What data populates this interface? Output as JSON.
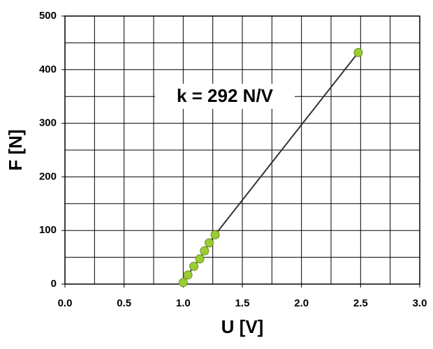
{
  "chart_data": {
    "type": "scatter",
    "x_label": "U [V]",
    "y_label": "F [N]",
    "annotation": "k = 292 N/V",
    "series": [
      {
        "color": "#9acd32",
        "line_color": "#333333",
        "x": [
          1.0,
          1.04,
          1.09,
          1.14,
          1.18,
          1.22,
          1.27,
          2.48
        ],
        "values": [
          3,
          17,
          33,
          47,
          62,
          77,
          92,
          432
        ]
      }
    ],
    "xlim": [
      0,
      3
    ],
    "ylim": [
      0,
      500
    ],
    "xticks": [
      {
        "value": 0,
        "label": "0.0"
      },
      0.5,
      {
        "value": 1,
        "label": "1.0"
      },
      1.5,
      {
        "value": 2,
        "label": "2.0"
      },
      2.5,
      {
        "value": 3,
        "label": "3.0"
      }
    ],
    "yticks": [
      0,
      100,
      200,
      300,
      400,
      500
    ],
    "grid": true,
    "minor_grid": true
  }
}
